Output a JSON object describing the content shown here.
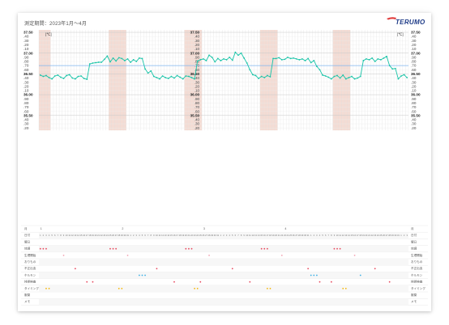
{
  "header": {
    "period": "測定期間：2023年1月〜4月"
  },
  "brand": {
    "logo_text": "TERUMO",
    "logo_color": "#1f3c88",
    "logo_accent": "#e03a3a"
  },
  "colors": {
    "line": "#18c4a8",
    "baseline": "#7fb6f0",
    "band": "#f2d6cc",
    "grid": "#dedede"
  },
  "unit_label": "[℃]",
  "y_axis": [
    "37.50",
    ".40",
    ".30",
    ".20",
    ".10",
    "37.00",
    ".90",
    ".80",
    ".70",
    ".60",
    "36.50",
    ".40",
    ".30",
    ".20",
    ".10",
    "36.00",
    ".90",
    ".80",
    ".70",
    ".60",
    "35.50",
    ".40",
    ".30",
    ".20"
  ],
  "row_labels": [
    "月",
    "日付",
    "曜日",
    "体調",
    "生理開始",
    "おりもの",
    "不正出血",
    "ホルモン",
    "排卵検査",
    "タイミング",
    "服薬",
    "メモ"
  ],
  "month_marks": [
    "1",
    "2",
    "3",
    "4"
  ],
  "chart_data": {
    "type": "line",
    "ylim": [
      35.2,
      37.55
    ],
    "baseline": 36.7,
    "period_bands": [
      [
        0,
        3
      ],
      [
        24,
        29
      ],
      [
        50,
        55
      ],
      [
        76,
        81
      ],
      [
        101,
        106
      ]
    ],
    "month_start_index": [
      0,
      28,
      56,
      84
    ],
    "values": [
      36.47,
      36.44,
      36.46,
      36.41,
      36.38,
      36.45,
      36.47,
      36.42,
      36.39,
      36.46,
      36.48,
      36.4,
      36.38,
      36.44,
      36.45,
      36.39,
      36.37,
      36.74,
      36.76,
      36.77,
      36.78,
      36.78,
      36.85,
      36.93,
      36.79,
      36.88,
      36.81,
      36.89,
      36.87,
      36.82,
      36.86,
      36.78,
      36.84,
      36.8,
      36.88,
      36.87,
      36.62,
      36.52,
      36.57,
      36.44,
      36.41,
      36.38,
      36.45,
      36.41,
      36.39,
      36.44,
      36.4,
      36.46,
      36.42,
      36.38,
      36.45,
      36.44,
      36.41,
      36.38,
      36.81,
      36.84,
      36.86,
      36.82,
      36.95,
      36.9,
      36.79,
      36.87,
      36.82,
      36.86,
      36.84,
      36.9,
      36.83,
      37.02,
      36.95,
      37.0,
      36.88,
      36.76,
      36.6,
      36.48,
      36.46,
      36.39,
      36.44,
      36.41,
      36.46,
      36.43,
      36.87,
      36.87,
      36.89,
      36.84,
      36.85,
      36.9,
      36.87,
      36.88,
      36.86,
      36.84,
      36.86,
      36.82,
      36.87,
      36.77,
      36.82,
      36.68,
      36.6,
      36.47,
      36.45,
      36.42,
      36.38,
      36.44,
      36.46,
      36.4,
      36.47,
      36.38,
      36.41,
      36.44,
      36.38,
      36.4,
      36.44,
      36.82,
      36.86,
      36.84,
      36.88,
      36.8,
      36.86,
      36.84,
      36.88,
      36.92,
      36.7,
      36.62,
      36.63,
      36.38,
      36.45,
      36.48,
      36.41
    ]
  }
}
